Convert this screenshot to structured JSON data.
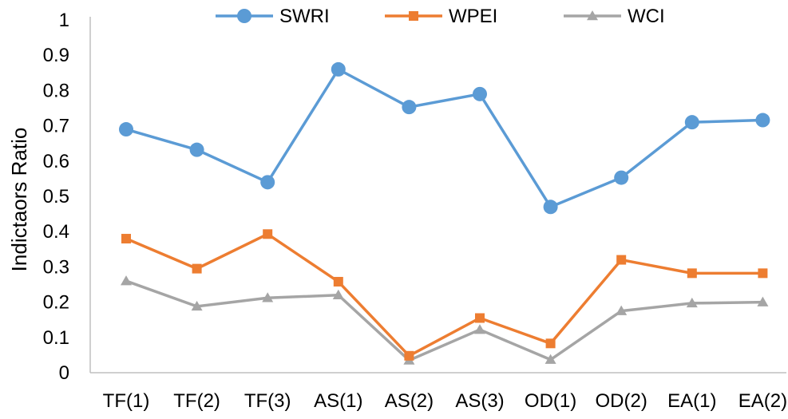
{
  "chart_data": {
    "type": "line",
    "title": "",
    "xlabel": "",
    "ylabel": "Indictaors Ratio",
    "ylim": [
      0,
      1
    ],
    "yticks": [
      "0",
      "0.1",
      "0.2",
      "0.3",
      "0.4",
      "0.5",
      "0.6",
      "0.7",
      "0.8",
      "0.9",
      "1"
    ],
    "categories": [
      "TF(1)",
      "TF(2)",
      "TF(3)",
      "AS(1)",
      "AS(2)",
      "AS(3)",
      "OD(1)",
      "OD(2)",
      "EA(1)",
      "EA(2)"
    ],
    "legend_position": "top",
    "grid": false,
    "series": [
      {
        "name": "SWRI",
        "color": "#5B9BD5",
        "marker": "circle",
        "values": [
          0.69,
          0.632,
          0.54,
          0.86,
          0.753,
          0.79,
          0.47,
          0.553,
          0.71,
          0.716
        ]
      },
      {
        "name": "WPEI",
        "color": "#ED7D31",
        "marker": "square",
        "values": [
          0.38,
          0.295,
          0.393,
          0.258,
          0.048,
          0.155,
          0.083,
          0.32,
          0.282,
          0.282
        ]
      },
      {
        "name": "WCI",
        "color": "#A5A5A5",
        "marker": "triangle",
        "values": [
          0.26,
          0.188,
          0.212,
          0.22,
          0.035,
          0.122,
          0.037,
          0.175,
          0.197,
          0.2
        ]
      }
    ]
  }
}
